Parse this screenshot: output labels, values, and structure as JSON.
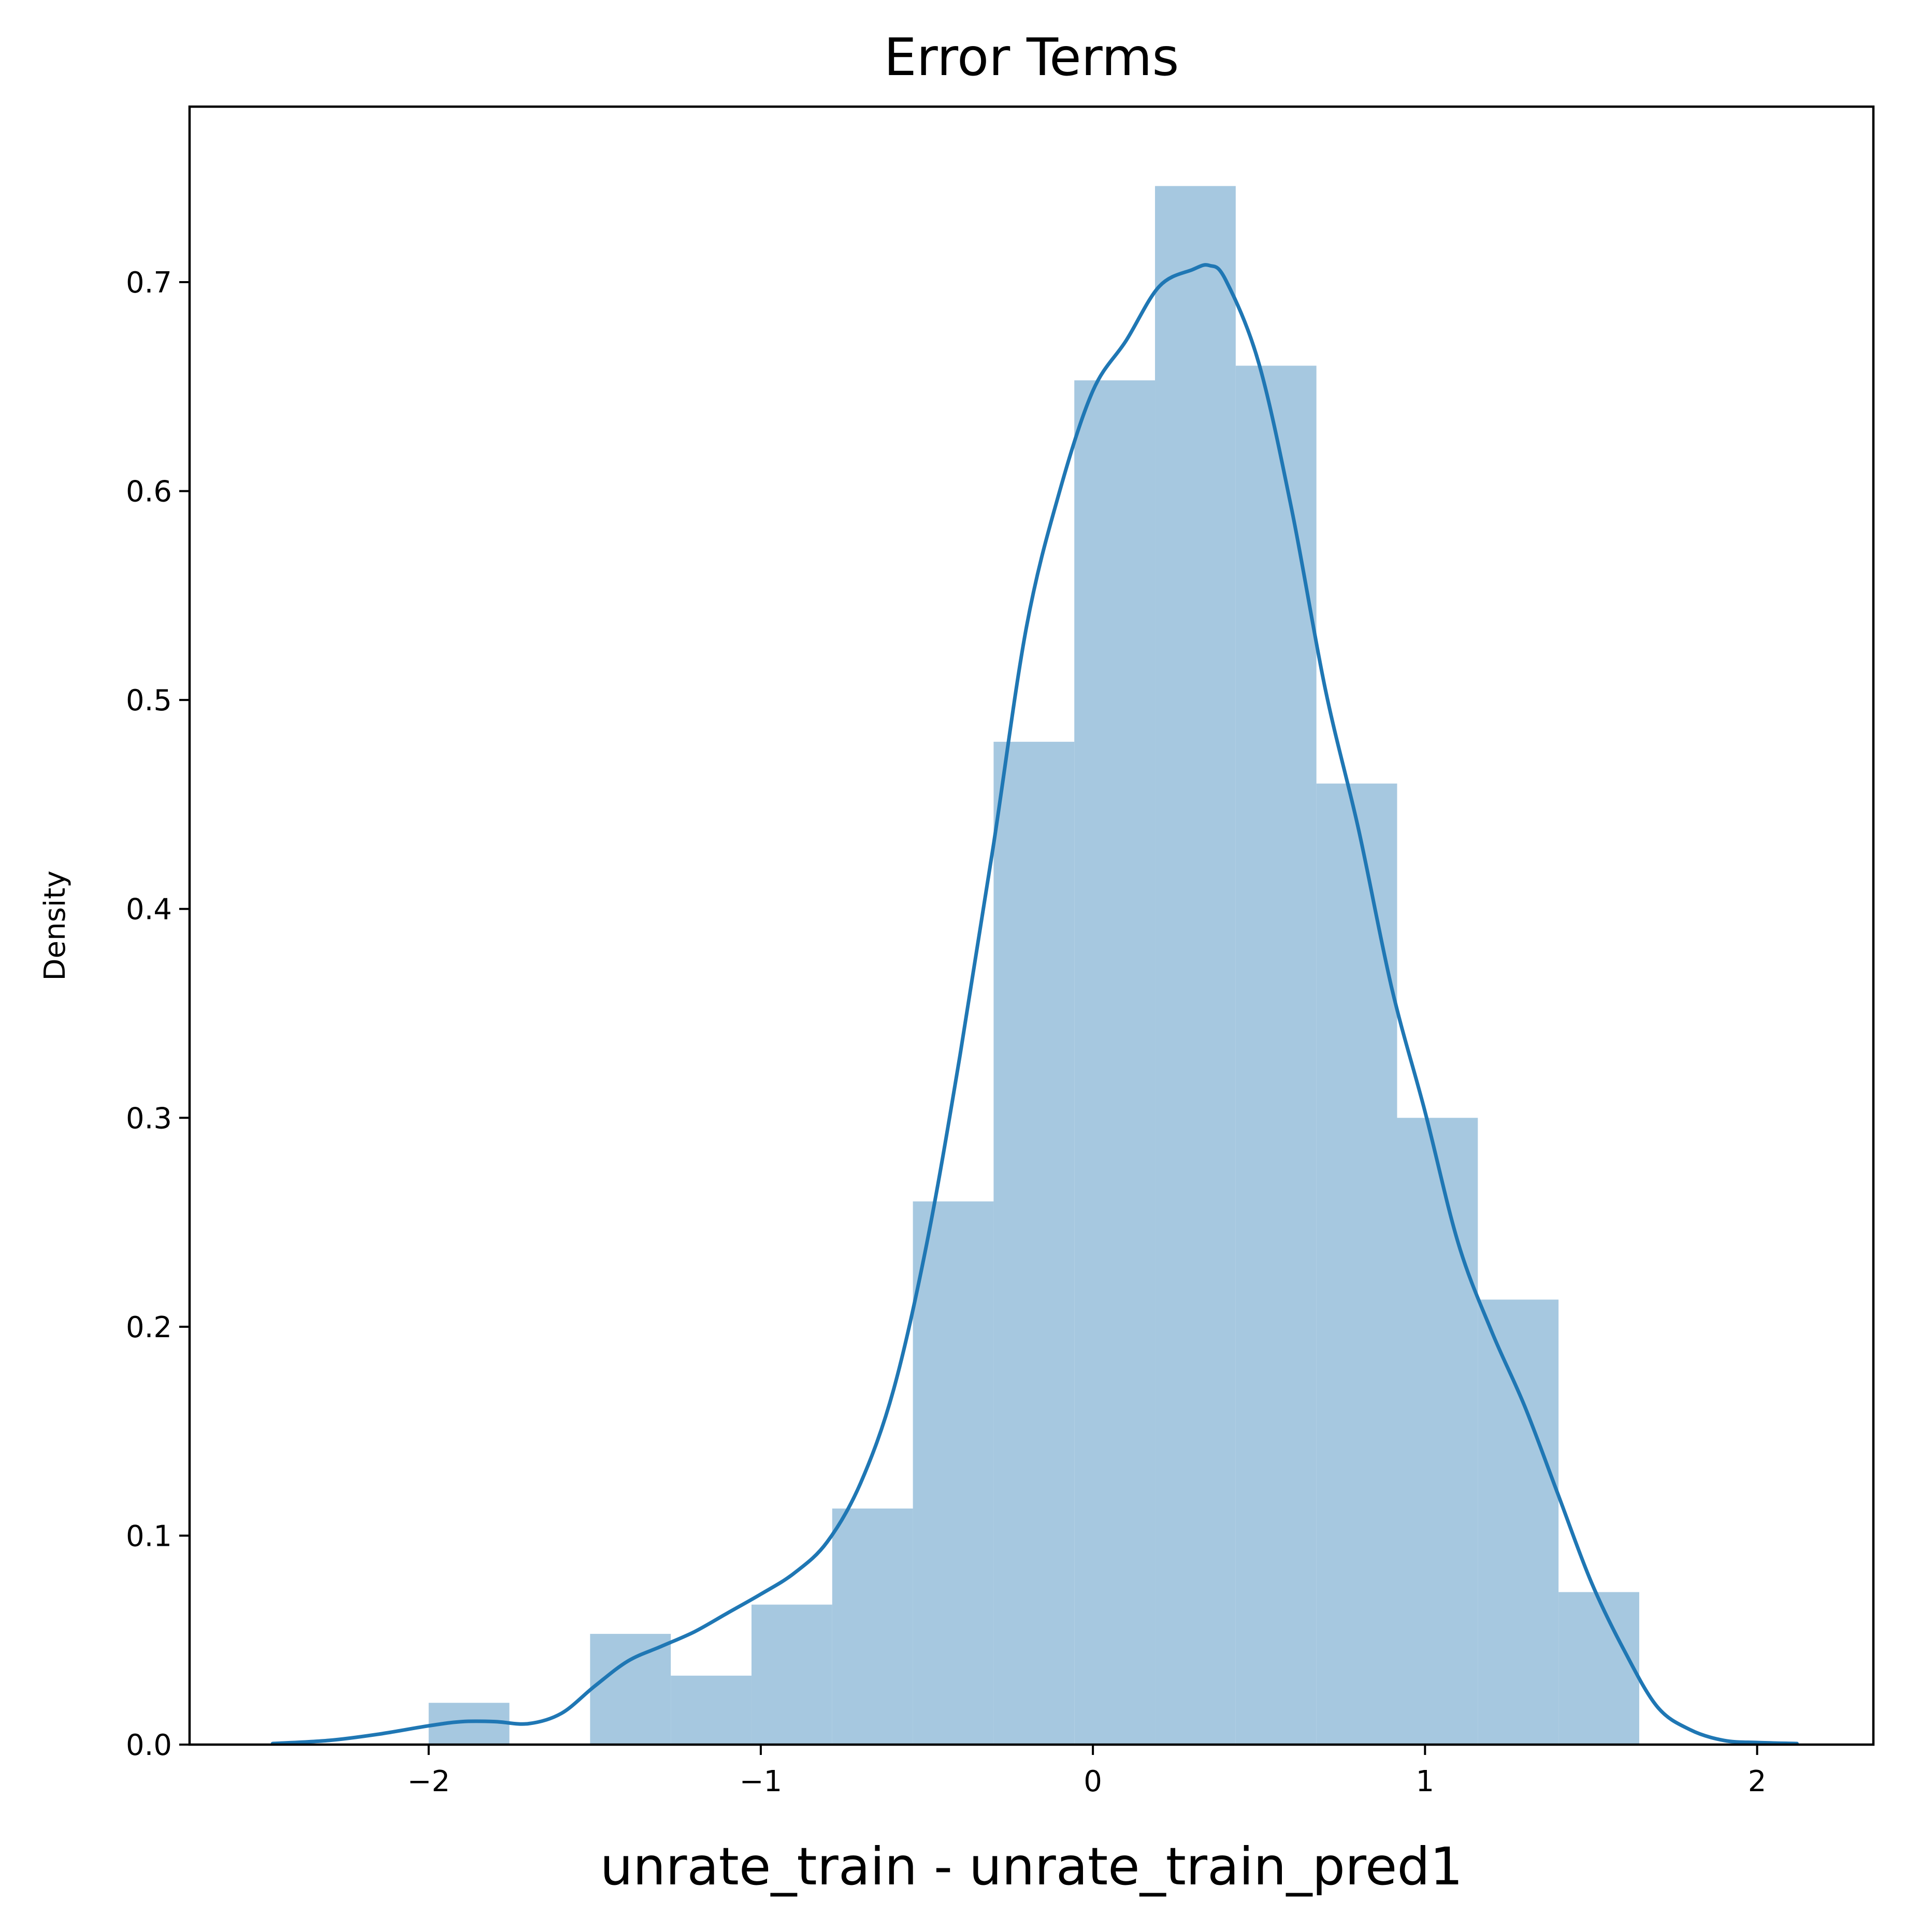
{
  "chart_data": {
    "type": "histogram",
    "title": "Error Terms",
    "xlabel": "unrate_train - unrate_train_pred1",
    "ylabel": "Density",
    "xlim": [
      -2.72,
      2.35
    ],
    "ylim": [
      0,
      0.784
    ],
    "x_ticks": [
      {
        "value": -2,
        "label": "−2"
      },
      {
        "value": -1,
        "label": "−1"
      },
      {
        "value": 0,
        "label": "0"
      },
      {
        "value": 1,
        "label": "1"
      },
      {
        "value": 2,
        "label": "2"
      }
    ],
    "y_ticks": [
      {
        "value": 0.0,
        "label": "0.0"
      },
      {
        "value": 0.1,
        "label": "0.1"
      },
      {
        "value": 0.2,
        "label": "0.2"
      },
      {
        "value": 0.3,
        "label": "0.3"
      },
      {
        "value": 0.4,
        "label": "0.4"
      },
      {
        "value": 0.5,
        "label": "0.5"
      },
      {
        "value": 0.6,
        "label": "0.6"
      },
      {
        "value": 0.7,
        "label": "0.7"
      }
    ],
    "bins": [
      {
        "x0": -2.0,
        "x1": -1.757,
        "density": 0.02
      },
      {
        "x0": -1.757,
        "x1": -1.514,
        "density": 0.0
      },
      {
        "x0": -1.514,
        "x1": -1.271,
        "density": 0.053
      },
      {
        "x0": -1.271,
        "x1": -1.028,
        "density": 0.033
      },
      {
        "x0": -1.028,
        "x1": -0.785,
        "density": 0.067
      },
      {
        "x0": -0.785,
        "x1": -0.542,
        "density": 0.113
      },
      {
        "x0": -0.542,
        "x1": -0.299,
        "density": 0.26
      },
      {
        "x0": -0.299,
        "x1": -0.056,
        "density": 0.48
      },
      {
        "x0": -0.056,
        "x1": 0.187,
        "density": 0.653
      },
      {
        "x0": 0.187,
        "x1": 0.43,
        "density": 0.746
      },
      {
        "x0": 0.43,
        "x1": 0.673,
        "density": 0.66
      },
      {
        "x0": 0.673,
        "x1": 0.916,
        "density": 0.46
      },
      {
        "x0": 0.916,
        "x1": 1.159,
        "density": 0.3
      },
      {
        "x0": 1.159,
        "x1": 1.402,
        "density": 0.213
      },
      {
        "x0": 1.402,
        "x1": 1.645,
        "density": 0.073
      }
    ],
    "kde": {
      "x": [
        -2.47,
        -2.3,
        -2.15,
        -2.0,
        -1.9,
        -1.8,
        -1.7,
        -1.6,
        -1.5,
        -1.4,
        -1.3,
        -1.2,
        -1.1,
        -1.0,
        -0.9,
        -0.8,
        -0.7,
        -0.6,
        -0.5,
        -0.4,
        -0.3,
        -0.2,
        -0.1,
        0.0,
        0.1,
        0.2,
        0.3,
        0.35,
        0.4,
        0.5,
        0.6,
        0.7,
        0.8,
        0.9,
        1.0,
        1.1,
        1.2,
        1.3,
        1.4,
        1.5,
        1.6,
        1.7,
        1.8,
        1.9,
        2.0,
        2.12
      ],
      "y": [
        0.0005,
        0.002,
        0.005,
        0.009,
        0.011,
        0.011,
        0.01,
        0.015,
        0.028,
        0.04,
        0.047,
        0.054,
        0.063,
        0.072,
        0.082,
        0.097,
        0.125,
        0.17,
        0.24,
        0.33,
        0.43,
        0.535,
        0.6,
        0.648,
        0.672,
        0.698,
        0.706,
        0.708,
        0.701,
        0.661,
        0.59,
        0.505,
        0.438,
        0.362,
        0.303,
        0.24,
        0.198,
        0.162,
        0.12,
        0.078,
        0.045,
        0.018,
        0.007,
        0.002,
        0.001,
        0.0005
      ]
    },
    "legend": "none",
    "grid": false,
    "colors": {
      "bar_fill": "#a6c8e0",
      "kde_line": "#1f77b4",
      "axes": "#000000",
      "background": "#ffffff"
    }
  }
}
